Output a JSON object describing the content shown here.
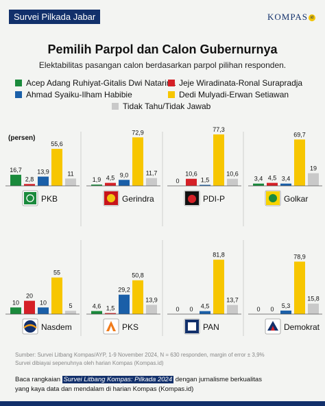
{
  "header": {
    "tag": "Survei Pilkada Jabar",
    "logo": "KOMPAS",
    "logo_badge": "id"
  },
  "title": "Pemilih Parpol dan Calon Gubernurnya",
  "subtitle": "Elektabilitas pasangan calon berdasarkan parpol pilihan responden.",
  "colors": {
    "green": "#1a8a3c",
    "red": "#d52027",
    "blue": "#1a5fa8",
    "yellow": "#f7c600",
    "gray": "#c9c9c9",
    "navy": "#12306b"
  },
  "chart_data": {
    "type": "bar",
    "unit_label": "(persen)",
    "series": [
      {
        "name": "Acep Adang Ruhiyat-Gitalis Dwi Natarina",
        "color": "#1a8a3c"
      },
      {
        "name": "Jeje Wiradinata-Ronal Surapradja",
        "color": "#d52027"
      },
      {
        "name": "Ahmad Syaiku-Ilham Habibie",
        "color": "#1a5fa8"
      },
      {
        "name": "Dedi Mulyadi-Erwan Setiawan",
        "color": "#f7c600"
      },
      {
        "name": "Tidak Tahu/Tidak Jawab",
        "color": "#c9c9c9"
      }
    ],
    "parties": [
      {
        "name": "PKB",
        "values": [
          16.7,
          2.8,
          13.9,
          55.6,
          11
        ],
        "labels": [
          "16,7",
          "2,8",
          "13,9",
          "55,6",
          "11"
        ]
      },
      {
        "name": "Gerindra",
        "values": [
          1.9,
          4.5,
          9.0,
          72.9,
          11.7
        ],
        "labels": [
          "1,9",
          "4,5",
          "9,0",
          "72,9",
          "11,7"
        ]
      },
      {
        "name": "PDI-P",
        "values": [
          0,
          10.6,
          1.5,
          77.3,
          10.6
        ],
        "labels": [
          "0",
          "10,6",
          "1,5",
          "77,3",
          "10,6"
        ]
      },
      {
        "name": "Golkar",
        "values": [
          3.4,
          4.5,
          3.4,
          69.7,
          19
        ],
        "labels": [
          "3,4",
          "4,5",
          "3,4",
          "69,7",
          "19"
        ]
      },
      {
        "name": "Nasdem",
        "values": [
          10,
          20,
          10,
          55,
          5
        ],
        "labels": [
          "10",
          "20",
          "10",
          "55",
          "5"
        ]
      },
      {
        "name": "PKS",
        "values": [
          4.6,
          1.5,
          29.2,
          50.8,
          13.9
        ],
        "labels": [
          "4,6",
          "1,5",
          "29,2",
          "50,8",
          "13,9"
        ]
      },
      {
        "name": "PAN",
        "values": [
          0,
          0,
          4.5,
          81.8,
          13.7
        ],
        "labels": [
          "0",
          "0",
          "4,5",
          "81,8",
          "13,7"
        ]
      },
      {
        "name": "Demokrat",
        "values": [
          0,
          0,
          5.3,
          78.9,
          15.8
        ],
        "labels": [
          "0",
          "0",
          "5,3",
          "78,9",
          "15,8"
        ]
      }
    ],
    "ylim": [
      0,
      85
    ]
  },
  "footer": {
    "source": "Sumber: Survei Litbang Kompas/AYP, 1-9 November 2024, N = 630 responden, margin of error ± 3,9%",
    "source2": "Survei dibiayai sepenuhnya oleh harian Kompas (Kompas.id)",
    "cta_pre": "Baca rangkaian ",
    "cta_highlight": "Survei Litbang Kompas: Pilkada 2024",
    "cta_post": " dengan jurnalisme berkualitas",
    "cta_line2": "yang kaya data dan mendalam di harian Kompas (Kompas.id)"
  }
}
